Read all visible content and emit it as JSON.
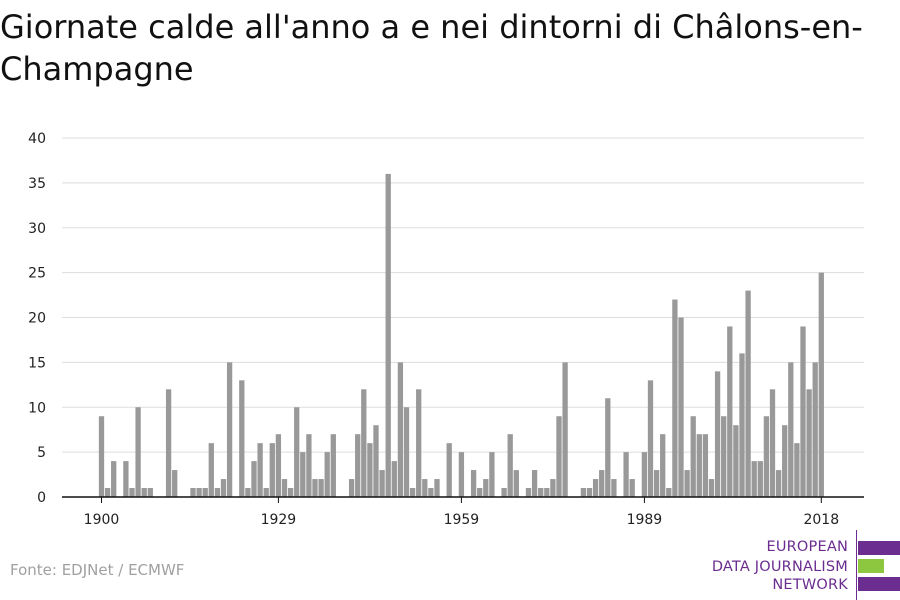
{
  "page": {
    "title": "Giornate calde all'anno a e nei dintorni di Châlons-en-Champagne",
    "source": "Fonte: EDJNet / ECMWF"
  },
  "logo": {
    "line1": "EUROPEAN",
    "line2": "DATA JOURNALISM",
    "line3": "NETWORK",
    "colors": {
      "purple": "#6b2d90",
      "green": "#8dc63f"
    }
  },
  "chart_data": {
    "type": "bar",
    "title": "Giornate calde all'anno a e nei dintorni di Châlons-en-Champagne",
    "xlabel": "",
    "ylabel": "",
    "x_start": 1900,
    "x_end": 2018,
    "xticks": [
      1900,
      1929,
      1959,
      1989,
      2018
    ],
    "yticks": [
      0,
      5,
      10,
      15,
      20,
      25,
      30,
      35,
      40
    ],
    "ylim": [
      0,
      40
    ],
    "grid": true,
    "bar_color": "#999999",
    "values": [
      9,
      1,
      4,
      0,
      4,
      1,
      10,
      1,
      1,
      0,
      0,
      12,
      3,
      0,
      0,
      1,
      1,
      1,
      6,
      1,
      2,
      15,
      0,
      13,
      1,
      4,
      6,
      1,
      6,
      7,
      2,
      1,
      10,
      5,
      7,
      2,
      2,
      5,
      7,
      0,
      0,
      2,
      7,
      12,
      6,
      8,
      3,
      36,
      4,
      15,
      10,
      1,
      12,
      2,
      1,
      2,
      0,
      6,
      0,
      5,
      0,
      3,
      1,
      2,
      5,
      0,
      1,
      7,
      3,
      0,
      1,
      3,
      1,
      1,
      2,
      9,
      15,
      0,
      0,
      1,
      1,
      2,
      3,
      11,
      2,
      0,
      5,
      2,
      0,
      5,
      13,
      3,
      7,
      1,
      22,
      20,
      3,
      9,
      7,
      7,
      2,
      14,
      9,
      19,
      8,
      16,
      23,
      4,
      4,
      9,
      12,
      3,
      8,
      15,
      6,
      19,
      12,
      15,
      25
    ]
  }
}
